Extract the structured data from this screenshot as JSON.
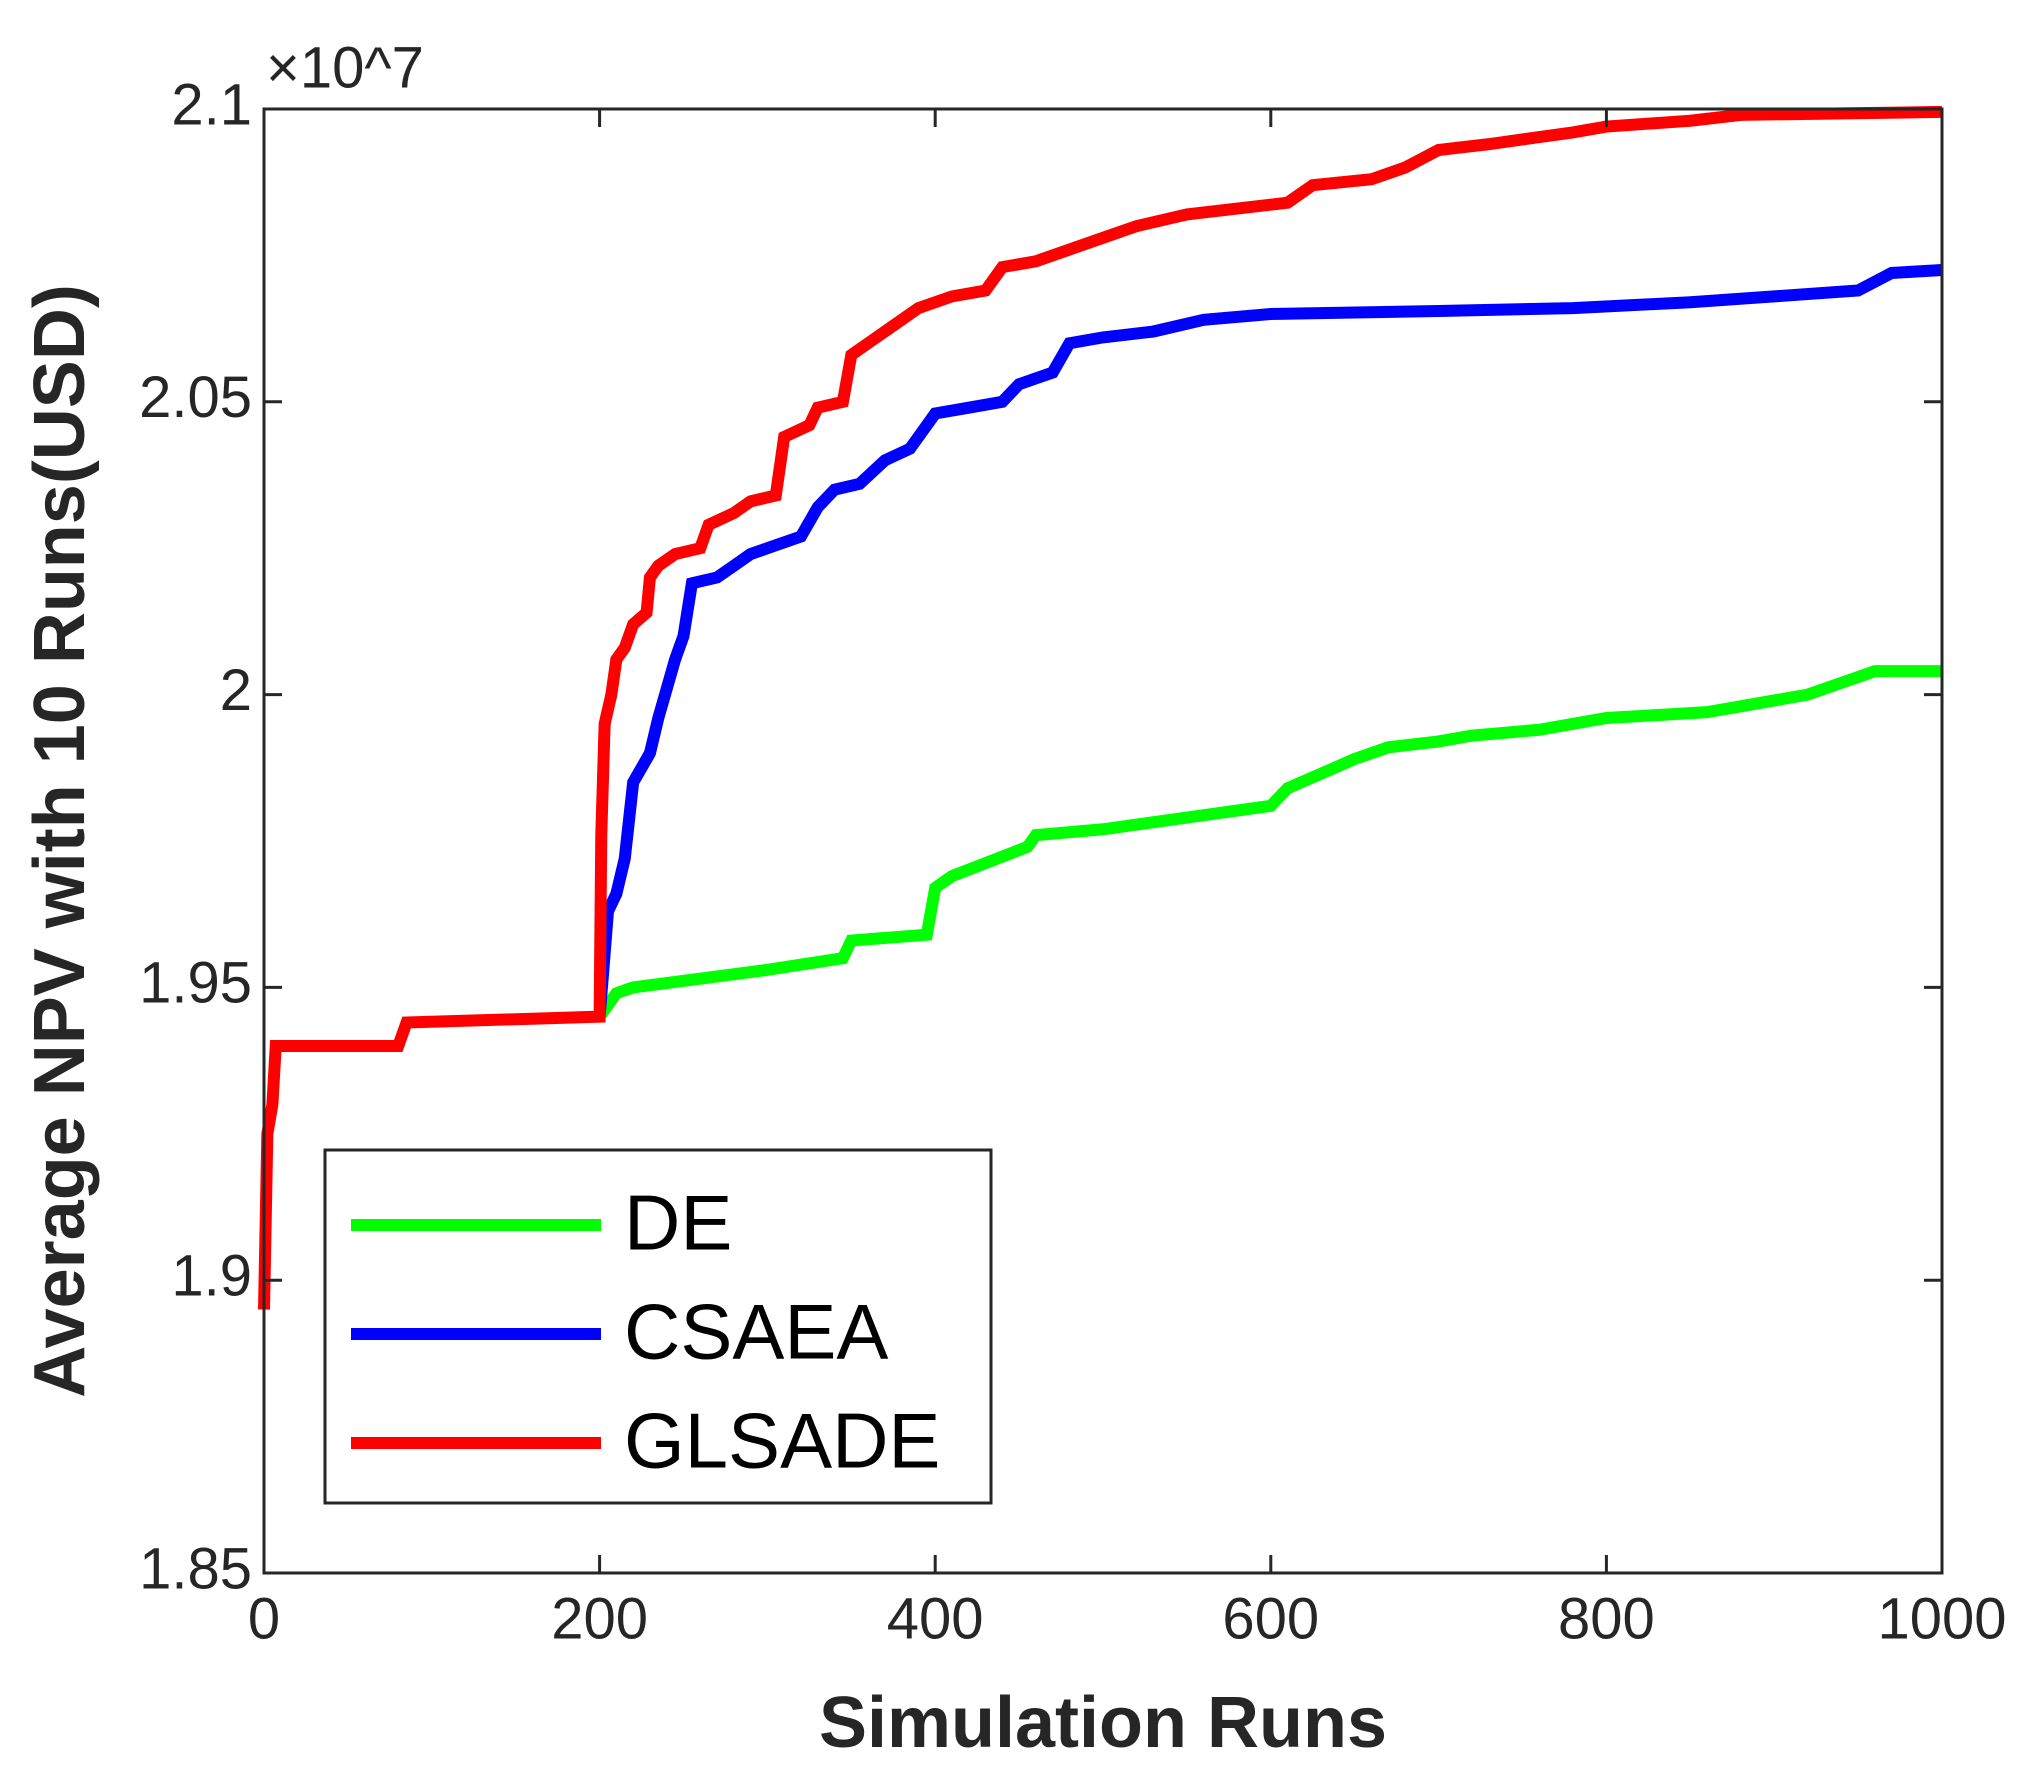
{
  "chart_data": {
    "type": "line",
    "exponent_label": "×10^7",
    "xlabel": "Simulation Runs",
    "ylabel": "Average NPV with 10 Runs(USD)",
    "xlim": [
      0,
      1000
    ],
    "xticks": [
      0,
      200,
      400,
      600,
      800,
      1000
    ],
    "ylim": [
      1.85,
      2.1
    ],
    "yticks": [
      1.85,
      1.9,
      1.95,
      2,
      2.05,
      2.1
    ],
    "legend": "lower left",
    "series": [
      {
        "name": "DE",
        "color": "#00ff00",
        "x": [
          200,
          210,
          220,
          300,
          345,
          350,
          395,
          400,
          410,
          455,
          460,
          500,
          550,
          600,
          610,
          650,
          670,
          700,
          720,
          760,
          800,
          860,
          880,
          920,
          940,
          960,
          1000
        ],
        "values": [
          1.945,
          1.949,
          1.95,
          1.953,
          1.955,
          1.958,
          1.959,
          1.967,
          1.969,
          1.974,
          1.976,
          1.977,
          1.979,
          1.981,
          1.984,
          1.989,
          1.991,
          1.992,
          1.993,
          1.994,
          1.996,
          1.997,
          1.998,
          2.0,
          2.002,
          2.004,
          2.004
        ]
      },
      {
        "name": "CSAEA",
        "color": "#0000ff",
        "x": [
          200,
          205,
          210,
          215,
          220,
          230,
          235,
          240,
          245,
          250,
          255,
          270,
          280,
          290,
          300,
          320,
          330,
          340,
          355,
          370,
          385,
          395,
          400,
          420,
          440,
          450,
          470,
          480,
          500,
          530,
          560,
          600,
          700,
          780,
          850,
          900,
          950,
          970,
          1000
        ],
        "values": [
          1.945,
          1.963,
          1.966,
          1.972,
          1.985,
          1.99,
          1.996,
          2.001,
          2.006,
          2.01,
          2.019,
          2.02,
          2.022,
          2.024,
          2.025,
          2.027,
          2.032,
          2.035,
          2.036,
          2.04,
          2.042,
          2.046,
          2.048,
          2.049,
          2.05,
          2.053,
          2.055,
          2.06,
          2.061,
          2.062,
          2.064,
          2.065,
          2.0655,
          2.066,
          2.067,
          2.068,
          2.069,
          2.072,
          2.0725
        ]
      },
      {
        "name": "GLSADE",
        "color": "#ff0000",
        "x": [
          0,
          2,
          5,
          7,
          80,
          85,
          200,
          201,
          203,
          207,
          210,
          215,
          220,
          228,
          230,
          235,
          245,
          260,
          265,
          280,
          290,
          305,
          310,
          325,
          330,
          345,
          350,
          360,
          375,
          390,
          410,
          430,
          440,
          460,
          480,
          500,
          520,
          550,
          580,
          610,
          625,
          660,
          680,
          700,
          730,
          780,
          800,
          850,
          880,
          1000
        ],
        "values": [
          1.895,
          1.925,
          1.93,
          1.94,
          1.94,
          1.944,
          1.945,
          1.976,
          1.995,
          2.0,
          2.006,
          2.008,
          2.012,
          2.014,
          2.02,
          2.022,
          2.024,
          2.025,
          2.029,
          2.031,
          2.033,
          2.034,
          2.044,
          2.046,
          2.049,
          2.05,
          2.058,
          2.06,
          2.063,
          2.066,
          2.068,
          2.069,
          2.073,
          2.074,
          2.076,
          2.078,
          2.08,
          2.082,
          2.083,
          2.084,
          2.087,
          2.088,
          2.09,
          2.093,
          2.094,
          2.096,
          2.097,
          2.098,
          2.099,
          2.0995
        ]
      }
    ]
  }
}
